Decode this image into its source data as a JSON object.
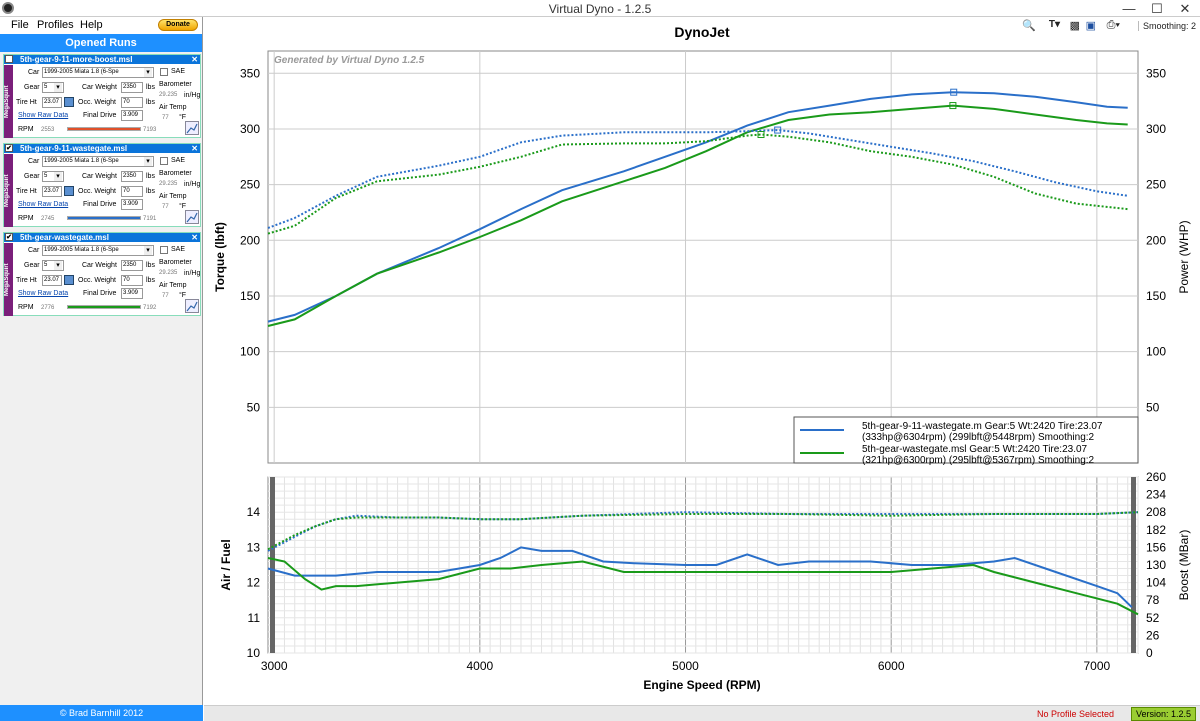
{
  "window": {
    "title": "Virtual Dyno - 1.2.5"
  },
  "menu": {
    "file": "File",
    "profiles": "Profiles",
    "help": "Help",
    "donate": "Donate"
  },
  "sidebar": {
    "opened_runs_title": "Opened Runs",
    "copyright": "© Brad Barnhill 2012",
    "labels": {
      "car": "Car",
      "gear": "Gear",
      "tire": "Tire Ht",
      "car_weight": "Car Weight",
      "occ_weight": "Occ. Weight",
      "final_drive": "Final Drive",
      "barometer": "Barometer",
      "air_temp": "Air Temp",
      "sae": "SAE",
      "lbs": "lbs",
      "inhg": "in/Hg",
      "degf": "°F",
      "rpm": "RPM",
      "show_raw": "Show Raw Data",
      "tag": "MegaSquirt"
    },
    "runs": [
      {
        "name": "5th-gear-9-11-more-boost.msl",
        "checked": "",
        "car": "1999-2005 Miata 1.8 (6-Spe",
        "gear": "5",
        "tire": "23.07",
        "car_weight": "2350",
        "occ_weight": "70",
        "final_drive": "3.909",
        "barometer": "29.235",
        "air_temp": "77",
        "rpm_min": "2553",
        "rpm_max": "7193",
        "bar_color": "#e0502a"
      },
      {
        "name": "5th-gear-9-11-wastegate.msl",
        "checked": "✔",
        "car": "1999-2005 Miata 1.8 (6-Spe",
        "gear": "5",
        "tire": "23.07",
        "car_weight": "2350",
        "occ_weight": "70",
        "final_drive": "3.909",
        "barometer": "29.235",
        "air_temp": "77",
        "rpm_min": "2745",
        "rpm_max": "7191",
        "bar_color": "#2a6fc9"
      },
      {
        "name": "5th-gear-wastegate.msl",
        "checked": "✔",
        "car": "1999-2005 Miata 1.8 (6-Spe",
        "gear": "5",
        "tire": "23.07",
        "car_weight": "2350",
        "occ_weight": "70",
        "final_drive": "3.909",
        "barometer": "29.235",
        "air_temp": "77",
        "rpm_min": "2776",
        "rpm_max": "7192",
        "bar_color": "#1a9a1a"
      }
    ]
  },
  "toolbar": {
    "smoothing": "Smoothing: 2"
  },
  "status": {
    "profile": "No Profile Selected",
    "version": "Version: 1.2.5"
  },
  "chart_data": [
    {
      "type": "line",
      "title": "DynoJet",
      "watermark": "Generated by Virtual Dyno 1.2.5",
      "xlabel": "Engine Speed (RPM)",
      "ylabel": "Torque (lbft)",
      "y2label": "Power (WHP)",
      "xlim": [
        2970,
        7200
      ],
      "ylim": [
        0,
        370
      ],
      "xticks": [
        3000,
        4000,
        5000,
        6000,
        7000
      ],
      "yticks": [
        50,
        100,
        150,
        200,
        250,
        300,
        350
      ],
      "series": [
        {
          "name": "power-wastegate-9-11",
          "axis": "power",
          "color": "#2a6fc9",
          "dashed": false,
          "x": [
            2970,
            3100,
            3300,
            3500,
            3800,
            4000,
            4200,
            4400,
            4700,
            4900,
            5100,
            5300,
            5500,
            5700,
            5900,
            6100,
            6300,
            6500,
            6700,
            6900,
            7050,
            7150
          ],
          "y": [
            127,
            133,
            150,
            170,
            193,
            210,
            228,
            245,
            262,
            275,
            288,
            303,
            315,
            321,
            327,
            331,
            333,
            332,
            329,
            324,
            320,
            319
          ]
        },
        {
          "name": "power-wastegate",
          "axis": "power",
          "color": "#1a9a1a",
          "dashed": false,
          "x": [
            2970,
            3100,
            3300,
            3500,
            3800,
            4000,
            4200,
            4400,
            4700,
            4900,
            5100,
            5300,
            5500,
            5700,
            5900,
            6100,
            6300,
            6500,
            6700,
            6900,
            7050,
            7150
          ],
          "y": [
            123,
            129,
            150,
            170,
            189,
            203,
            218,
            235,
            253,
            265,
            280,
            297,
            308,
            313,
            315,
            318,
            321,
            318,
            313,
            308,
            305,
            304
          ]
        },
        {
          "name": "torque-wastegate-9-11",
          "axis": "torque",
          "color": "#2a6fc9",
          "dashed": true,
          "x": [
            2970,
            3100,
            3300,
            3500,
            3800,
            4000,
            4200,
            4400,
            4700,
            4900,
            5100,
            5300,
            5450,
            5600,
            5800,
            6000,
            6200,
            6400,
            6600,
            6800,
            7000,
            7150
          ],
          "y": [
            211,
            220,
            240,
            257,
            267,
            275,
            288,
            294,
            297,
            297,
            297,
            298,
            299,
            296,
            290,
            284,
            278,
            271,
            262,
            252,
            244,
            240
          ]
        },
        {
          "name": "torque-wastegate",
          "axis": "torque",
          "color": "#1a9a1a",
          "dashed": true,
          "x": [
            2970,
            3100,
            3300,
            3500,
            3800,
            4000,
            4200,
            4400,
            4700,
            4900,
            5100,
            5300,
            5367,
            5500,
            5700,
            5900,
            6100,
            6300,
            6500,
            6700,
            6900,
            7150
          ],
          "y": [
            206,
            213,
            238,
            253,
            259,
            266,
            275,
            286,
            287,
            287,
            289,
            294,
            295,
            293,
            288,
            280,
            275,
            268,
            257,
            242,
            233,
            228
          ]
        }
      ],
      "legend": [
        {
          "line1": "5th-gear-9-11-wastegate.m Gear:5 Wt:2420 Tire:23.07",
          "line2": "(333hp@6304rpm) (299lbft@5448rpm) Smoothing:2",
          "color": "#2a6fc9"
        },
        {
          "line1": "5th-gear-wastegate.msl Gear:5 Wt:2420 Tire:23.07",
          "line2": "(321hp@6300rpm) (295lbft@5367rpm) Smoothing:2",
          "color": "#1a9a1a"
        }
      ],
      "legend_position": "bottom-right",
      "markers": [
        {
          "series": "power-wastegate-9-11",
          "x": 6304,
          "y": 333
        },
        {
          "series": "power-wastegate",
          "x": 6300,
          "y": 321
        },
        {
          "series": "torque-wastegate-9-11",
          "x": 5448,
          "y": 299
        },
        {
          "series": "torque-wastegate",
          "x": 5367,
          "y": 295
        }
      ]
    },
    {
      "type": "line",
      "xlabel": "Engine Speed (RPM)",
      "ylabel": "Air / Fuel",
      "y2label": "Boost (MBar)",
      "xlim": [
        2970,
        7200
      ],
      "ylim": [
        10,
        15
      ],
      "xticks": [
        3000,
        4000,
        5000,
        6000,
        7000
      ],
      "yticks": [
        10,
        11,
        12,
        13,
        14
      ],
      "y2ticks": [
        0,
        26,
        52,
        78,
        104,
        130,
        156,
        182,
        208,
        234,
        260
      ],
      "series": [
        {
          "name": "afr-wastegate-9-11",
          "color": "#2a6fc9",
          "dashed": false,
          "x": [
            2970,
            3100,
            3300,
            3500,
            3800,
            4000,
            4100,
            4200,
            4300,
            4450,
            4600,
            4750,
            5000,
            5150,
            5300,
            5450,
            5600,
            5900,
            6100,
            6300,
            6500,
            6600,
            6800,
            7000,
            7100,
            7170
          ],
          "y": [
            12.4,
            12.2,
            12.2,
            12.3,
            12.3,
            12.5,
            12.7,
            13.0,
            12.9,
            12.9,
            12.6,
            12.55,
            12.5,
            12.5,
            12.8,
            12.5,
            12.6,
            12.6,
            12.5,
            12.5,
            12.6,
            12.7,
            12.3,
            11.9,
            11.7,
            11.3
          ]
        },
        {
          "name": "afr-wastegate",
          "color": "#1a9a1a",
          "dashed": false,
          "x": [
            2970,
            3050,
            3150,
            3230,
            3300,
            3400,
            3600,
            3800,
            4000,
            4150,
            4300,
            4500,
            4700,
            5000,
            5300,
            5600,
            6000,
            6200,
            6400,
            6500,
            6700,
            6900,
            7100,
            7200
          ],
          "y": [
            12.7,
            12.6,
            12.1,
            11.8,
            11.9,
            11.9,
            12.0,
            12.1,
            12.4,
            12.4,
            12.5,
            12.6,
            12.3,
            12.3,
            12.3,
            12.3,
            12.3,
            12.4,
            12.5,
            12.3,
            12.0,
            11.7,
            11.4,
            11.1
          ]
        },
        {
          "name": "boost-wastegate-9-11",
          "color": "#2a6fc9",
          "dashed": true,
          "x": [
            2970,
            3100,
            3200,
            3300,
            3400,
            3600,
            3800,
            4000,
            4200,
            4500,
            5000,
            5500,
            6000,
            6500,
            7000,
            7200
          ],
          "y": [
            12.9,
            13.3,
            13.6,
            13.8,
            13.9,
            13.85,
            13.85,
            13.8,
            13.8,
            13.9,
            14.0,
            13.95,
            13.95,
            13.95,
            13.95,
            14.0
          ]
        },
        {
          "name": "boost-wastegate",
          "color": "#1a9a1a",
          "dashed": true,
          "x": [
            2970,
            3100,
            3200,
            3300,
            3400,
            3600,
            3800,
            4000,
            4200,
            4500,
            5000,
            5500,
            6000,
            6500,
            7000,
            7200
          ],
          "y": [
            12.95,
            13.35,
            13.6,
            13.8,
            13.85,
            13.85,
            13.85,
            13.8,
            13.8,
            13.9,
            13.95,
            13.95,
            13.9,
            13.95,
            13.95,
            14.0
          ]
        }
      ]
    }
  ]
}
